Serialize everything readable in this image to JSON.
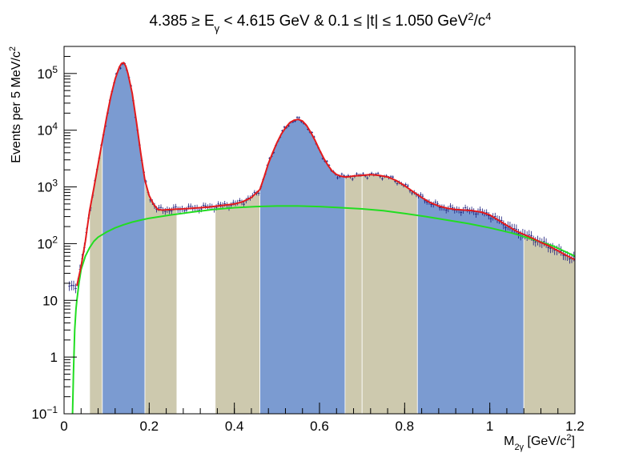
{
  "chart_data": {
    "type": "area",
    "title": "4.385 ≥ E_γ < 4.615 GeV  &  0.1 ≤ |t| ≤ 1.050 GeV²/c⁴",
    "title_parts": [
      "4.385 ≥ E",
      "γ",
      " < 4.615 GeV  &  0.1 ≤ |t| ≤ 1.050 GeV",
      "2",
      "/c",
      "4"
    ],
    "xlabel": "M_2γ [GeV/c²]",
    "xlabel_parts": [
      "M",
      "2γ",
      " [GeV/c",
      "2",
      "]"
    ],
    "ylabel": "Events per 5 MeV/c²",
    "ylabel_parts": [
      "Events per 5 MeV/c",
      "2"
    ],
    "xlim": [
      0,
      1.2
    ],
    "ylim": [
      0.1,
      300000
    ],
    "y_scale": "log",
    "grid": false,
    "x_ticks": [
      "0",
      "0.2",
      "0.4",
      "0.6",
      "0.8",
      "1",
      "1.2"
    ],
    "y_ticks": [
      {
        "base": "10",
        "exp": "−1"
      },
      {
        "base": "1",
        "exp": ""
      },
      {
        "base": "10",
        "exp": ""
      },
      {
        "base": "10",
        "exp": "2"
      },
      {
        "base": "10",
        "exp": "3"
      },
      {
        "base": "10",
        "exp": "4"
      },
      {
        "base": "10",
        "exp": "5"
      }
    ],
    "colors": {
      "blue_band": "#7b9bd1",
      "tan_band": "#cdc9ae",
      "total_fit": "#e31a1c",
      "background_fit": "#22dd22",
      "data_points": "#1a1a7a"
    },
    "bands": [
      {
        "x0": 0.06,
        "x1": 0.09,
        "color": "tan"
      },
      {
        "x0": 0.09,
        "x1": 0.19,
        "color": "blue"
      },
      {
        "x0": 0.19,
        "x1": 0.265,
        "color": "tan"
      },
      {
        "x0": 0.355,
        "x1": 0.46,
        "color": "tan"
      },
      {
        "x0": 0.46,
        "x1": 0.66,
        "color": "blue"
      },
      {
        "x0": 0.66,
        "x1": 0.7,
        "color": "tan"
      },
      {
        "x0": 0.7,
        "x1": 0.83,
        "color": "tan"
      },
      {
        "x0": 0.83,
        "x1": 1.08,
        "color": "blue"
      },
      {
        "x0": 1.08,
        "x1": 1.2,
        "color": "tan"
      }
    ],
    "series": [
      {
        "role": "total_fit",
        "x": [
          0.03,
          0.04,
          0.05,
          0.06,
          0.07,
          0.08,
          0.09,
          0.1,
          0.11,
          0.12,
          0.13,
          0.135,
          0.14,
          0.145,
          0.15,
          0.16,
          0.17,
          0.18,
          0.19,
          0.2,
          0.21,
          0.22,
          0.23,
          0.24,
          0.25,
          0.26,
          0.28,
          0.3,
          0.32,
          0.34,
          0.36,
          0.38,
          0.4,
          0.42,
          0.44,
          0.46,
          0.47,
          0.48,
          0.49,
          0.5,
          0.51,
          0.52,
          0.53,
          0.54,
          0.55,
          0.56,
          0.57,
          0.58,
          0.59,
          0.6,
          0.61,
          0.62,
          0.63,
          0.64,
          0.65,
          0.66,
          0.67,
          0.68,
          0.69,
          0.7,
          0.72,
          0.74,
          0.76,
          0.78,
          0.8,
          0.82,
          0.84,
          0.86,
          0.88,
          0.9,
          0.92,
          0.94,
          0.96,
          0.98,
          1.0,
          1.02,
          1.04,
          1.06,
          1.08,
          1.1,
          1.12,
          1.14,
          1.16,
          1.18,
          1.2
        ],
        "y": [
          18,
          40,
          110,
          380,
          950,
          2500,
          6500,
          17000,
          40000,
          80000,
          130000,
          150000,
          155000,
          135000,
          100000,
          45000,
          14000,
          4000,
          1300,
          700,
          500,
          400,
          390,
          395,
          400,
          405,
          410,
          420,
          430,
          440,
          460,
          480,
          500,
          550,
          650,
          900,
          1500,
          2600,
          4000,
          6000,
          8500,
          11000,
          13500,
          15000,
          15500,
          14500,
          12000,
          9000,
          6500,
          4500,
          3200,
          2400,
          1900,
          1650,
          1550,
          1500,
          1520,
          1560,
          1580,
          1600,
          1650,
          1600,
          1500,
          1300,
          1050,
          820,
          650,
          530,
          460,
          420,
          400,
          390,
          380,
          360,
          320,
          260,
          210,
          170,
          145,
          125,
          105,
          90,
          75,
          62,
          52
        ]
      },
      {
        "role": "background_fit",
        "x": [
          0.02,
          0.022,
          0.025,
          0.028,
          0.03,
          0.035,
          0.04,
          0.05,
          0.06,
          0.07,
          0.08,
          0.1,
          0.12,
          0.14,
          0.16,
          0.18,
          0.2,
          0.25,
          0.3,
          0.35,
          0.4,
          0.45,
          0.5,
          0.55,
          0.6,
          0.65,
          0.7,
          0.75,
          0.8,
          0.85,
          0.9,
          0.95,
          1.0,
          1.05,
          1.1,
          1.15,
          1.2
        ],
        "y": [
          0.1,
          0.5,
          3,
          7,
          10,
          20,
          35,
          60,
          85,
          110,
          130,
          160,
          190,
          215,
          240,
          260,
          280,
          320,
          360,
          400,
          430,
          450,
          460,
          460,
          450,
          430,
          410,
          380,
          340,
          300,
          260,
          225,
          190,
          155,
          120,
          90,
          60
        ]
      }
    ]
  }
}
